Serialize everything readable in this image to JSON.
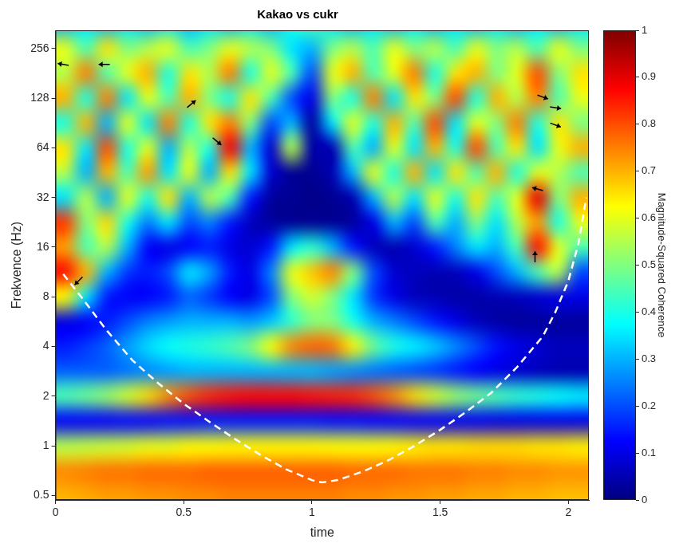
{
  "chart_data": {
    "type": "heatmap",
    "title": "Kakao vs cukr",
    "x_label": "time",
    "y_label": "Frekvence (Hz)",
    "log": "y",
    "grid": false,
    "xlim": [
      0,
      2.08
    ],
    "xticks": [
      0,
      0.5,
      1,
      1.5,
      2
    ],
    "ylim": [
      0.47,
      330
    ],
    "yticks": [
      0.5,
      1,
      2,
      4,
      8,
      16,
      32,
      64,
      128,
      256
    ],
    "x_bins": [
      0,
      0.08,
      0.16,
      0.24,
      0.32,
      0.4,
      0.48,
      0.56,
      0.64,
      0.72,
      0.8,
      0.88,
      0.96,
      1.04,
      1.12,
      1.2,
      1.28,
      1.36,
      1.44,
      1.52,
      1.6,
      1.68,
      1.76,
      1.84,
      1.92,
      2,
      2.08
    ],
    "y_bins": [
      0.4204,
      0.5946,
      0.8409,
      1.1892,
      1.6818,
      2.3784,
      3.3636,
      4.7568,
      6.7272,
      9.5137,
      13.4543,
      19.0273,
      26.9087,
      38.0546,
      53.8174,
      76.1093,
      107.635,
      152.219,
      215.269,
      304.437,
      430.539
    ],
    "cells": [
      [
        0.7,
        0.71,
        0.72,
        0.72,
        0.73,
        0.73,
        0.74,
        0.74,
        0.75,
        0.75,
        0.75,
        0.75,
        0.75,
        0.75,
        0.74,
        0.74,
        0.73,
        0.73,
        0.72,
        0.72,
        0.71,
        0.71,
        0.7,
        0.7,
        0.69,
        0.69
      ],
      [
        0.74,
        0.75,
        0.76,
        0.76,
        0.77,
        0.77,
        0.77,
        0.78,
        0.78,
        0.78,
        0.78,
        0.78,
        0.78,
        0.78,
        0.77,
        0.77,
        0.77,
        0.76,
        0.76,
        0.76,
        0.75,
        0.75,
        0.74,
        0.74,
        0.73,
        0.73
      ],
      [
        0.55,
        0.56,
        0.57,
        0.58,
        0.6,
        0.6,
        0.62,
        0.62,
        0.63,
        0.63,
        0.63,
        0.63,
        0.63,
        0.62,
        0.62,
        0.62,
        0.63,
        0.64,
        0.65,
        0.65,
        0.66,
        0.66,
        0.66,
        0.65,
        0.65,
        0.64
      ],
      [
        0.12,
        0.12,
        0.12,
        0.13,
        0.13,
        0.14,
        0.14,
        0.15,
        0.15,
        0.15,
        0.15,
        0.15,
        0.15,
        0.14,
        0.14,
        0.13,
        0.13,
        0.12,
        0.12,
        0.11,
        0.11,
        0.1,
        0.1,
        0.1,
        0.1,
        0.1
      ],
      [
        0.45,
        0.48,
        0.52,
        0.58,
        0.66,
        0.74,
        0.8,
        0.84,
        0.86,
        0.87,
        0.87,
        0.87,
        0.86,
        0.85,
        0.84,
        0.8,
        0.74,
        0.66,
        0.58,
        0.52,
        0.48,
        0.45,
        0.42,
        0.4,
        0.38,
        0.36
      ],
      [
        0.22,
        0.22,
        0.22,
        0.24,
        0.26,
        0.28,
        0.3,
        0.3,
        0.3,
        0.3,
        0.3,
        0.3,
        0.3,
        0.28,
        0.26,
        0.24,
        0.22,
        0.2,
        0.18,
        0.15,
        0.12,
        0.1,
        0.08,
        0.06,
        0.05,
        0.05
      ],
      [
        0.15,
        0.18,
        0.22,
        0.28,
        0.34,
        0.38,
        0.4,
        0.42,
        0.45,
        0.5,
        0.62,
        0.74,
        0.78,
        0.76,
        0.64,
        0.48,
        0.4,
        0.36,
        0.32,
        0.26,
        0.2,
        0.14,
        0.1,
        0.08,
        0.06,
        0.06
      ],
      [
        0.1,
        0.12,
        0.15,
        0.2,
        0.25,
        0.28,
        0.3,
        0.3,
        0.3,
        0.28,
        0.32,
        0.42,
        0.5,
        0.5,
        0.4,
        0.3,
        0.25,
        0.2,
        0.15,
        0.1,
        0.06,
        0.04,
        0.03,
        0.03,
        0.03,
        0.03
      ],
      [
        0.62,
        0.35,
        0.15,
        0.12,
        0.12,
        0.15,
        0.22,
        0.18,
        0.12,
        0.1,
        0.2,
        0.5,
        0.58,
        0.5,
        0.35,
        0.18,
        0.1,
        0.06,
        0.05,
        0.04,
        0.04,
        0.05,
        0.06,
        0.08,
        0.1,
        0.1
      ],
      [
        0.86,
        0.7,
        0.3,
        0.18,
        0.15,
        0.2,
        0.35,
        0.28,
        0.15,
        0.1,
        0.25,
        0.6,
        0.68,
        0.74,
        0.5,
        0.2,
        0.08,
        0.06,
        0.05,
        0.06,
        0.1,
        0.2,
        0.3,
        0.45,
        0.55,
        0.2
      ],
      [
        0.72,
        0.45,
        0.55,
        0.3,
        0.12,
        0.1,
        0.12,
        0.15,
        0.1,
        0.08,
        0.15,
        0.35,
        0.42,
        0.3,
        0.15,
        0.06,
        0.05,
        0.08,
        0.15,
        0.25,
        0.35,
        0.3,
        0.45,
        0.86,
        0.6,
        0.45
      ],
      [
        0.82,
        0.5,
        0.66,
        0.4,
        0.25,
        0.35,
        0.2,
        0.25,
        0.15,
        0.06,
        0.03,
        0.02,
        0.02,
        0.02,
        0.03,
        0.1,
        0.3,
        0.2,
        0.45,
        0.3,
        0.5,
        0.35,
        0.55,
        0.72,
        0.4,
        0.6
      ],
      [
        0.35,
        0.55,
        0.3,
        0.6,
        0.4,
        0.65,
        0.3,
        0.55,
        0.45,
        0.15,
        0.03,
        0.02,
        0.01,
        0.02,
        0.05,
        0.3,
        0.55,
        0.35,
        0.6,
        0.4,
        0.65,
        0.45,
        0.6,
        0.9,
        0.5,
        0.7
      ],
      [
        0.55,
        0.3,
        0.7,
        0.45,
        0.72,
        0.35,
        0.6,
        0.3,
        0.65,
        0.35,
        0.08,
        0.02,
        0.02,
        0.05,
        0.3,
        0.6,
        0.4,
        0.7,
        0.35,
        0.65,
        0.45,
        0.7,
        0.4,
        0.6,
        0.55,
        0.45
      ],
      [
        0.65,
        0.35,
        0.8,
        0.4,
        0.6,
        0.3,
        0.55,
        0.4,
        0.88,
        0.3,
        0.08,
        0.55,
        0.04,
        0.05,
        0.45,
        0.3,
        0.6,
        0.35,
        0.7,
        0.4,
        0.8,
        0.45,
        0.65,
        0.35,
        0.6,
        0.7
      ],
      [
        0.4,
        0.7,
        0.3,
        0.6,
        0.35,
        0.75,
        0.4,
        0.65,
        0.75,
        0.5,
        0.2,
        0.3,
        0.03,
        0.35,
        0.6,
        0.4,
        0.7,
        0.45,
        0.8,
        0.35,
        0.6,
        0.5,
        0.75,
        0.4,
        0.65,
        0.5
      ],
      [
        0.7,
        0.4,
        0.75,
        0.35,
        0.6,
        0.45,
        0.7,
        0.5,
        0.4,
        0.65,
        0.45,
        0.2,
        0.1,
        0.5,
        0.4,
        0.75,
        0.35,
        0.65,
        0.5,
        0.8,
        0.4,
        0.7,
        0.55,
        0.75,
        0.45,
        0.6
      ],
      [
        0.55,
        0.75,
        0.45,
        0.6,
        0.7,
        0.4,
        0.65,
        0.55,
        0.75,
        0.4,
        0.6,
        0.45,
        0.2,
        0.6,
        0.7,
        0.45,
        0.6,
        0.75,
        0.4,
        0.65,
        0.7,
        0.5,
        0.6,
        0.8,
        0.5,
        0.65
      ],
      [
        0.6,
        0.45,
        0.65,
        0.5,
        0.55,
        0.6,
        0.45,
        0.5,
        0.6,
        0.55,
        0.5,
        0.35,
        0.3,
        0.5,
        0.55,
        0.45,
        0.6,
        0.5,
        0.55,
        0.45,
        0.6,
        0.5,
        0.55,
        0.45,
        0.6,
        0.5
      ],
      [
        0.3,
        0.35,
        0.3,
        0.35,
        0.3,
        0.35,
        0.3,
        0.35,
        0.3,
        0.35,
        0.3,
        0.4,
        0.45,
        0.35,
        0.3,
        0.35,
        0.3,
        0.35,
        0.3,
        0.35,
        0.3,
        0.35,
        0.3,
        0.35,
        0.3,
        0.35
      ]
    ],
    "colorbar": {
      "label": "Magnitude-Squared Coherence",
      "range": [
        0,
        1
      ],
      "ticks": [
        0,
        0.1,
        0.2,
        0.3,
        0.4,
        0.5,
        0.6,
        0.7,
        0.8,
        0.9,
        1
      ]
    },
    "cone_of_influence": {
      "x": [
        0.03,
        0.1,
        0.2,
        0.3,
        0.4,
        0.5,
        0.6,
        0.7,
        0.8,
        0.9,
        1.0,
        1.04,
        1.1,
        1.2,
        1.3,
        1.4,
        1.5,
        1.6,
        1.7,
        1.8,
        1.9,
        1.95,
        2.0,
        2.04,
        2.07
      ],
      "y": [
        11,
        8,
        5,
        3.3,
        2.4,
        1.8,
        1.4,
        1.1,
        0.88,
        0.72,
        0.62,
        0.6,
        0.62,
        0.7,
        0.82,
        1,
        1.25,
        1.6,
        2.1,
        3,
        4.6,
        6.5,
        10,
        17,
        32
      ],
      "color": "#ffffff",
      "line_style": "dashed"
    },
    "arrows": [
      {
        "x": 0.03,
        "y": 205,
        "angle": 170
      },
      {
        "x": 0.19,
        "y": 205,
        "angle": 180
      },
      {
        "x": 0.53,
        "y": 118,
        "angle": 40
      },
      {
        "x": 0.63,
        "y": 70,
        "angle": -40
      },
      {
        "x": 0.09,
        "y": 10,
        "angle": -135
      },
      {
        "x": 1.9,
        "y": 130,
        "angle": -20
      },
      {
        "x": 1.95,
        "y": 112,
        "angle": -10
      },
      {
        "x": 1.95,
        "y": 88,
        "angle": -20
      },
      {
        "x": 1.88,
        "y": 36,
        "angle": 165
      },
      {
        "x": 1.87,
        "y": 14,
        "angle": 90
      }
    ]
  }
}
